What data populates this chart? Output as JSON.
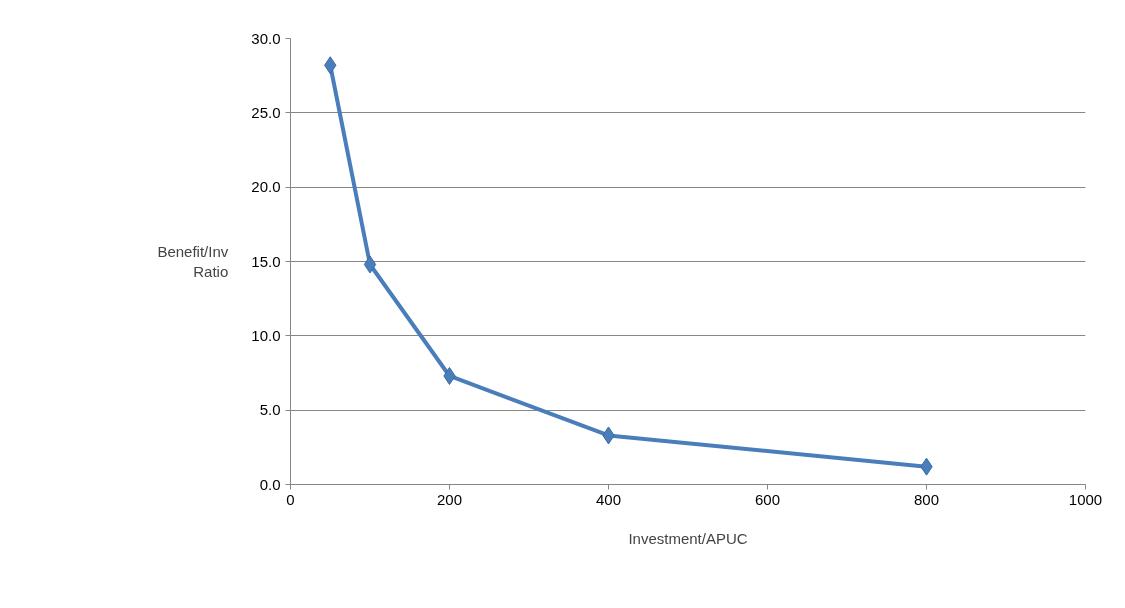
{
  "chart_data": {
    "type": "line",
    "xlabel": "Investment/APUC",
    "ylabel": "Benefit/Inv Ratio",
    "x": [
      50,
      100,
      200,
      400,
      800
    ],
    "series": [
      {
        "color": "#4a7ebb",
        "values": [
          28.2,
          14.8,
          7.3,
          3.3,
          1.2
        ]
      }
    ],
    "xlim": [
      0,
      1000
    ],
    "xticks": [
      0,
      200,
      400,
      600,
      800,
      1000
    ],
    "ylim": [
      0,
      30
    ],
    "yticks": [
      {
        "value": 0,
        "label": "0.0"
      },
      {
        "value": 5,
        "label": "5.0"
      },
      {
        "value": 10,
        "label": "10.0"
      },
      {
        "value": 15,
        "label": "15.0"
      },
      {
        "value": 20,
        "label": "20.0"
      },
      {
        "value": 25,
        "label": "25.0"
      },
      {
        "value": 30,
        "label": "30.0"
      }
    ],
    "grid": "y",
    "marker": "diamond",
    "line_style": "solid"
  }
}
